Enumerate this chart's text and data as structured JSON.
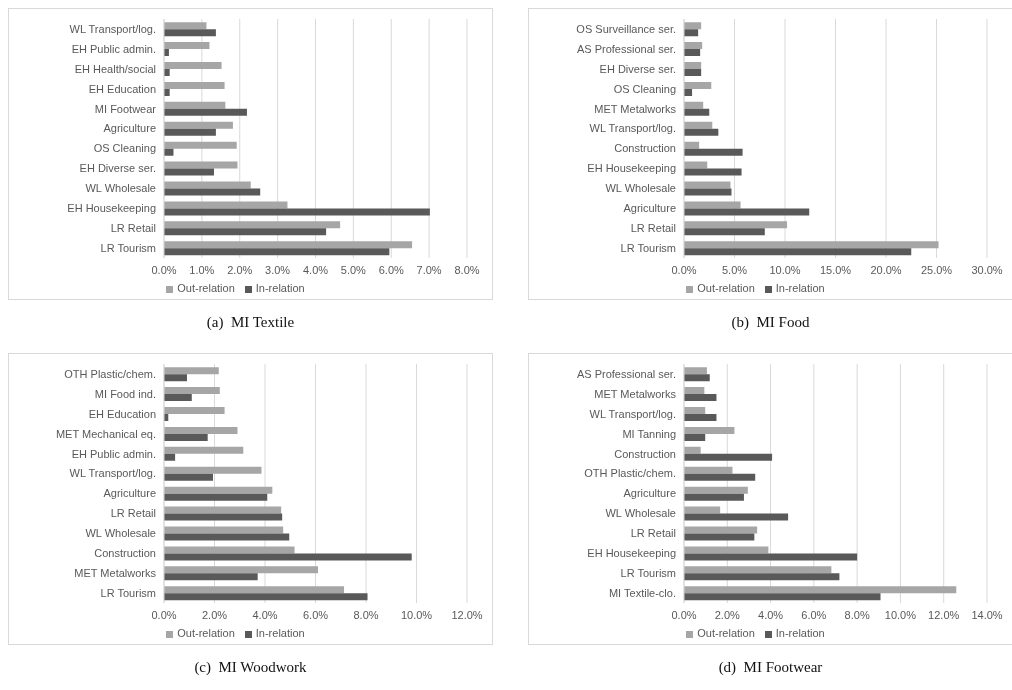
{
  "chart_data": [
    {
      "type": "bar",
      "orientation": "horizontal",
      "title": "(a)  MI Textile",
      "categories": [
        "WL Transport/log.",
        "EH Public admin.",
        "EH Health/social",
        "EH Education",
        "MI Footwear",
        "Agriculture",
        "OS Cleaning",
        "EH Diverse ser.",
        "WL Wholesale",
        "EH Housekeeping",
        "LR Retail",
        "LR Tourism"
      ],
      "series": [
        {
          "name": "Out-relation",
          "color": "#a6a6a6",
          "values": [
            1.12,
            1.2,
            1.52,
            1.6,
            1.62,
            1.82,
            1.92,
            1.94,
            2.29,
            3.26,
            4.65,
            6.55
          ]
        },
        {
          "name": "In-relation",
          "color": "#595959",
          "values": [
            1.37,
            0.13,
            0.15,
            0.15,
            2.19,
            1.37,
            0.25,
            1.32,
            2.54,
            7.02,
            4.28,
            5.95
          ]
        }
      ],
      "xlim": [
        0,
        8
      ],
      "xticks": [
        {
          "value": 0,
          "label": "0.0%"
        },
        {
          "value": 1,
          "label": "1.0%"
        },
        {
          "value": 2,
          "label": "2.0%"
        },
        {
          "value": 3,
          "label": "3.0%"
        },
        {
          "value": 4,
          "label": "4.0%"
        },
        {
          "value": 5,
          "label": "5.0%"
        },
        {
          "value": 6,
          "label": "6.0%"
        },
        {
          "value": 7,
          "label": "7.0%"
        },
        {
          "value": 8,
          "label": "8.0%"
        }
      ],
      "grid": "x",
      "legend": "bottom"
    },
    {
      "type": "bar",
      "orientation": "horizontal",
      "title": "(b)  MI Food",
      "categories": [
        "OS Surveillance ser.",
        "AS Professional ser.",
        "EH Diverse ser.",
        "OS Cleaning",
        "MET Metalworks",
        "WL Transport/log.",
        "Construction",
        "EH Housekeeping",
        "WL Wholesale",
        "Agriculture",
        "LR Retail",
        "LR Tourism"
      ],
      "series": [
        {
          "name": "Out-relation",
          "color": "#a6a6a6",
          "values": [
            1.7,
            1.8,
            1.7,
            2.7,
            1.9,
            2.8,
            1.5,
            2.3,
            4.6,
            5.6,
            10.2,
            25.2
          ]
        },
        {
          "name": "In-relation",
          "color": "#595959",
          "values": [
            1.4,
            1.6,
            1.7,
            0.8,
            2.5,
            3.4,
            5.8,
            5.7,
            4.7,
            12.4,
            8.0,
            22.5
          ]
        }
      ],
      "xlim": [
        0,
        30
      ],
      "xticks": [
        {
          "value": 0,
          "label": "0.0%"
        },
        {
          "value": 5,
          "label": "5.0%"
        },
        {
          "value": 10,
          "label": "10.0%"
        },
        {
          "value": 15,
          "label": "15.0%"
        },
        {
          "value": 20,
          "label": "20.0%"
        },
        {
          "value": 25,
          "label": "25.0%"
        },
        {
          "value": 30,
          "label": "30.0%"
        }
      ],
      "grid": "x",
      "legend": "bottom"
    },
    {
      "type": "bar",
      "orientation": "horizontal",
      "title": "(c)  MI Woodwork",
      "categories": [
        "OTH Plastic/chem.",
        "MI Food ind.",
        "EH Education",
        "MET Mechanical eq.",
        "EH Public admin.",
        "WL Transport/log.",
        "Agriculture",
        "LR Retail",
        "WL Wholesale",
        "Construction",
        "MET Metalworks",
        "LR Tourism"
      ],
      "series": [
        {
          "name": "Out-relation",
          "color": "#a6a6a6",
          "values": [
            2.17,
            2.21,
            2.4,
            2.91,
            3.14,
            3.86,
            4.29,
            4.64,
            4.72,
            5.17,
            6.1,
            7.13
          ]
        },
        {
          "name": "In-relation",
          "color": "#595959",
          "values": [
            0.91,
            1.1,
            0.17,
            1.73,
            0.44,
            1.94,
            4.09,
            4.68,
            4.96,
            9.81,
            3.71,
            8.06
          ]
        }
      ],
      "xlim": [
        0,
        12
      ],
      "xticks": [
        {
          "value": 0,
          "label": "0.0%"
        },
        {
          "value": 2,
          "label": "2.0%"
        },
        {
          "value": 4,
          "label": "4.0%"
        },
        {
          "value": 6,
          "label": "6.0%"
        },
        {
          "value": 8,
          "label": "8.0%"
        },
        {
          "value": 10,
          "label": "10.0%"
        },
        {
          "value": 12,
          "label": "12.0%"
        }
      ],
      "grid": "x",
      "legend": "bottom"
    },
    {
      "type": "bar",
      "orientation": "horizontal",
      "title": "(d)  MI Footwear",
      "categories": [
        "AS Professional ser.",
        "MET Metalworks",
        "WL Transport/log.",
        "MI Tanning",
        "Construction",
        "OTH Plastic/chem.",
        "Agriculture",
        "WL Wholesale",
        "LR Retail",
        "EH Housekeeping",
        "LR Tourism",
        "MI Textile-clo."
      ],
      "series": [
        {
          "name": "Out-relation",
          "color": "#a6a6a6",
          "values": [
            1.06,
            0.94,
            0.98,
            2.33,
            0.77,
            2.24,
            2.95,
            1.67,
            3.38,
            3.9,
            6.81,
            12.58
          ]
        },
        {
          "name": "In-relation",
          "color": "#595959",
          "values": [
            1.19,
            1.5,
            1.5,
            0.98,
            4.07,
            3.29,
            2.77,
            4.81,
            3.25,
            8.0,
            7.18,
            9.08
          ]
        }
      ],
      "xlim": [
        0,
        14
      ],
      "xticks": [
        {
          "value": 0,
          "label": "0.0%"
        },
        {
          "value": 2,
          "label": "2.0%"
        },
        {
          "value": 4,
          "label": "4.0%"
        },
        {
          "value": 6,
          "label": "6.0%"
        },
        {
          "value": 8,
          "label": "8.0%"
        },
        {
          "value": 10,
          "label": "10.0%"
        },
        {
          "value": 12,
          "label": "12.0%"
        },
        {
          "value": 14,
          "label": "14.0%"
        }
      ],
      "grid": "x",
      "legend": "bottom"
    }
  ]
}
